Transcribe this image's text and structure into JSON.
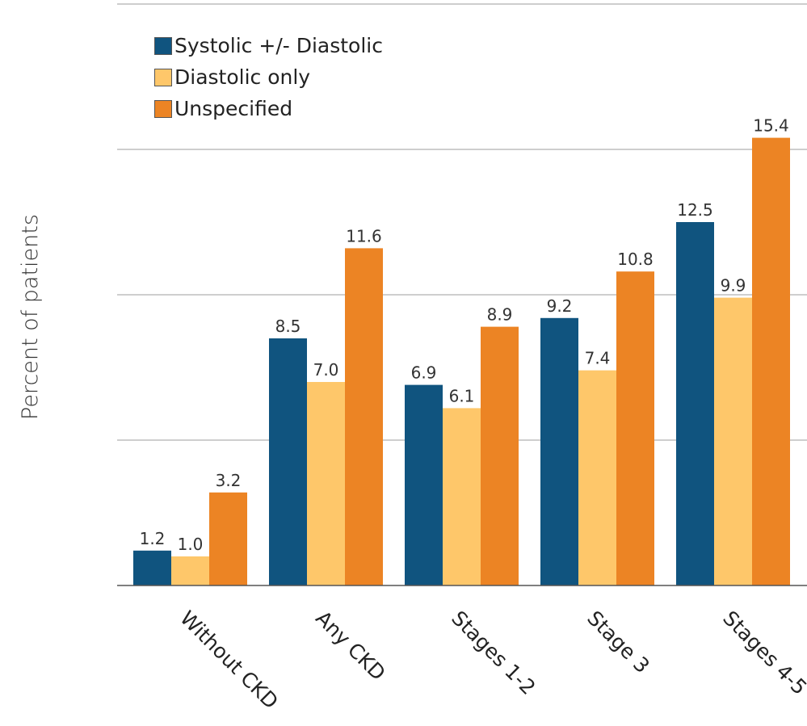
{
  "chart_data": {
    "type": "bar",
    "title": "",
    "xlabel": "",
    "ylabel": "Percent of patients",
    "categories": [
      "Without CKD",
      "Any CKD",
      "Stages 1-2",
      "Stage 3",
      "Stages 4-5"
    ],
    "series": [
      {
        "name": "Systolic +/- Diastolic",
        "color": "#10547f",
        "values": [
          1.2,
          8.5,
          6.9,
          9.2,
          12.5
        ]
      },
      {
        "name": "Diastolic only",
        "color": "#fec76a",
        "values": [
          1.0,
          7.0,
          6.1,
          7.4,
          9.9
        ]
      },
      {
        "name": "Unspecified",
        "color": "#ec8424",
        "values": [
          3.2,
          11.6,
          8.9,
          10.8,
          15.4
        ]
      }
    ],
    "ylim": [
      0,
      20
    ],
    "grid": true,
    "legend_position": "top-left",
    "data_labels": true
  }
}
